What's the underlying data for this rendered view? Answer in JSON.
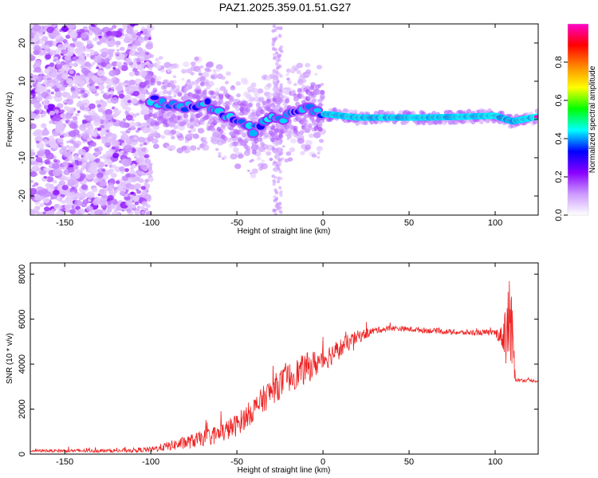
{
  "title": "PAZ1.2025.359.01.51.G27",
  "chart_data": [
    {
      "type": "heatmap",
      "xlabel": "Height of straight line (km)",
      "ylabel": "Frequency (Hz)",
      "xlim": [
        -170,
        125
      ],
      "ylim": [
        -25,
        25
      ],
      "x_ticks": [
        -150,
        -100,
        -50,
        0,
        50,
        100
      ],
      "y_ticks": [
        -20,
        -10,
        0,
        10,
        20
      ],
      "colorbar": {
        "label": "Normalized spectral amplitude",
        "range": [
          0,
          1
        ],
        "ticks": [
          "0.0",
          "0.2",
          "0.4",
          "0.6",
          "0.8"
        ],
        "colors": [
          "#ffffff",
          "#cc99ff",
          "#8800ff",
          "#0000ff",
          "#00ffff",
          "#00ff00",
          "#ffff00",
          "#ff8800",
          "#ff0000",
          "#ff00cc"
        ]
      },
      "ridge": {
        "x": [
          -100,
          -90,
          -80,
          -70,
          -60,
          -50,
          -45,
          -40,
          -35,
          -30,
          -25,
          -20,
          -15,
          -10,
          -5,
          0,
          10,
          20,
          40,
          60,
          80,
          100,
          110,
          125
        ],
        "freq": [
          5,
          4,
          3.5,
          4.5,
          2,
          -1,
          -1.5,
          -3,
          -1,
          0.5,
          0,
          1,
          2,
          3,
          2,
          1.5,
          1,
          0.5,
          0.5,
          0.5,
          0.7,
          1,
          -0.5,
          0.8
        ]
      }
    },
    {
      "type": "line",
      "xlabel": "Height of straight line (km)",
      "ylabel": "SNR (10 * v/v)",
      "xlim": [
        -170,
        125
      ],
      "ylim": [
        0,
        8500
      ],
      "x_ticks": [
        -150,
        -100,
        -50,
        0,
        50,
        100
      ],
      "y_ticks": [
        0,
        2000,
        4000,
        6000,
        8000
      ],
      "color": "#ee2222",
      "envelope": {
        "x": [
          -170,
          -120,
          -100,
          -80,
          -70,
          -60,
          -50,
          -40,
          -30,
          -20,
          -10,
          0,
          10,
          20,
          30,
          40,
          60,
          80,
          100,
          104,
          106,
          108,
          110,
          112,
          125
        ],
        "mean": [
          150,
          150,
          200,
          500,
          700,
          900,
          1300,
          2000,
          2800,
          3400,
          3800,
          4200,
          4700,
          5200,
          5500,
          5600,
          5500,
          5400,
          5400,
          5200,
          5500,
          6000,
          5000,
          3300,
          3250
        ],
        "noise": [
          60,
          80,
          120,
          300,
          350,
          450,
          500,
          550,
          650,
          650,
          700,
          550,
          450,
          300,
          150,
          120,
          120,
          120,
          140,
          500,
          1500,
          2500,
          1500,
          80,
          60
        ]
      }
    }
  ]
}
